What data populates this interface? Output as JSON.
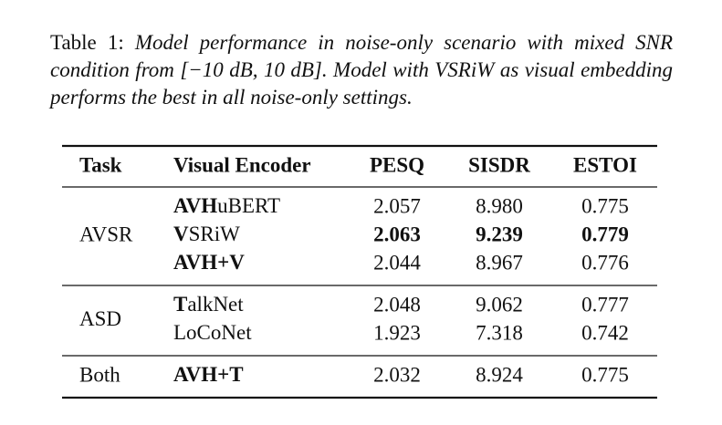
{
  "caption": {
    "label": "Table 1:",
    "text": "Model performance in noise-only scenario with mixed SNR condition from [−10 dB, 10 dB]. Model with VSRiW as visual embedding performs the best in all noise-only settings."
  },
  "table": {
    "header": [
      "Task",
      "Visual Encoder",
      "PESQ",
      "SISDR",
      "ESTOI"
    ],
    "groups": [
      {
        "task": "AVSR",
        "rows": [
          {
            "encoder": [
              {
                "text": "AVH",
                "bold": true
              },
              {
                "text": "uBERT",
                "bold": false
              }
            ],
            "values": [
              "2.057",
              "8.980",
              "0.775"
            ],
            "best": false
          },
          {
            "encoder": [
              {
                "text": "V",
                "bold": true
              },
              {
                "text": "SRiW",
                "bold": false
              }
            ],
            "values": [
              "2.063",
              "9.239",
              "0.779"
            ],
            "best": true
          },
          {
            "encoder": [
              {
                "text": "AVH+V",
                "bold": true
              }
            ],
            "values": [
              "2.044",
              "8.967",
              "0.776"
            ],
            "best": false
          }
        ]
      },
      {
        "task": "ASD",
        "rows": [
          {
            "encoder": [
              {
                "text": "T",
                "bold": true
              },
              {
                "text": "alkNet",
                "bold": false
              }
            ],
            "values": [
              "2.048",
              "9.062",
              "0.777"
            ],
            "best": false
          },
          {
            "encoder": [
              {
                "text": "LoCoNet",
                "bold": false
              }
            ],
            "values": [
              "1.923",
              "7.318",
              "0.742"
            ],
            "best": false
          }
        ]
      },
      {
        "task": "Both",
        "rows": [
          {
            "encoder": [
              {
                "text": "AVH+T",
                "bold": true
              }
            ],
            "values": [
              "2.032",
              "8.924",
              "0.775"
            ],
            "best": false
          }
        ]
      }
    ]
  }
}
